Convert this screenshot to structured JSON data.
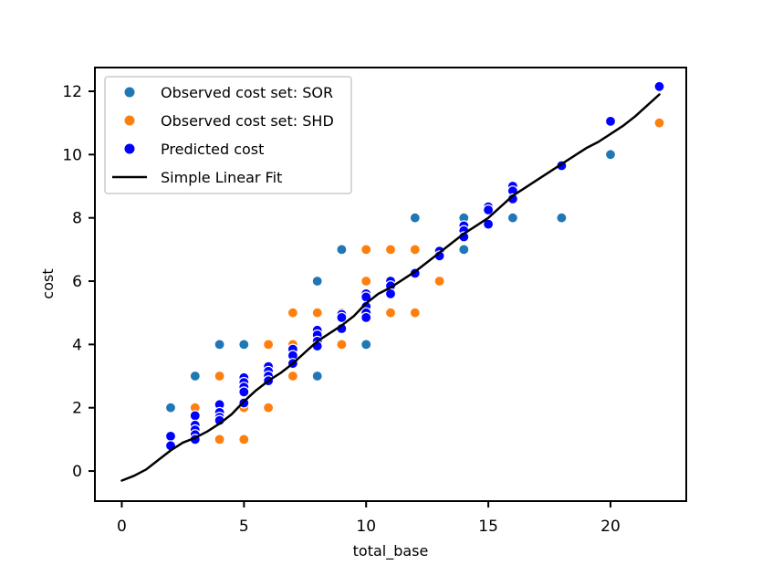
{
  "chart_data": {
    "type": "scatter",
    "xlabel": "total_base",
    "ylabel": "cost",
    "xlim": [
      -1.1,
      23.1
    ],
    "ylim": [
      -0.95,
      12.75
    ],
    "xticks": [
      0,
      5,
      10,
      15,
      20
    ],
    "yticks": [
      0,
      2,
      4,
      6,
      8,
      10,
      12
    ],
    "legend_position": "upper-left",
    "colors": {
      "sor": "#1f77b4",
      "shd": "#ff7f0e",
      "predicted": "#0000ff",
      "fit": "#000000"
    },
    "series": [
      {
        "name": "Observed cost set: SOR",
        "kind": "points",
        "points": [
          [
            2,
            2
          ],
          [
            3,
            3
          ],
          [
            4,
            4
          ],
          [
            5,
            4
          ],
          [
            8,
            6
          ],
          [
            8,
            3
          ],
          [
            9,
            7
          ],
          [
            10,
            4
          ],
          [
            12,
            8
          ],
          [
            14,
            8
          ],
          [
            14,
            7
          ],
          [
            16,
            8
          ],
          [
            18,
            8
          ],
          [
            20,
            10
          ]
        ]
      },
      {
        "name": "Observed cost set: SHD",
        "kind": "points",
        "points": [
          [
            3,
            2
          ],
          [
            3,
            1
          ],
          [
            4,
            3
          ],
          [
            4,
            1
          ],
          [
            5,
            2
          ],
          [
            5,
            1
          ],
          [
            6,
            4
          ],
          [
            6,
            2
          ],
          [
            7,
            5
          ],
          [
            7,
            4
          ],
          [
            7,
            3
          ],
          [
            8,
            5
          ],
          [
            9,
            5
          ],
          [
            9,
            4
          ],
          [
            10,
            7
          ],
          [
            10,
            6
          ],
          [
            11,
            7
          ],
          [
            11,
            5
          ],
          [
            12,
            7
          ],
          [
            12,
            5
          ],
          [
            13,
            6
          ],
          [
            22,
            11
          ]
        ]
      },
      {
        "name": "Predicted cost",
        "kind": "points",
        "points": [
          [
            2,
            1.1
          ],
          [
            2,
            0.8
          ],
          [
            3,
            1.75
          ],
          [
            3,
            1.45
          ],
          [
            3,
            1.3
          ],
          [
            3,
            1.15
          ],
          [
            3,
            1.0
          ],
          [
            4,
            2.1
          ],
          [
            4,
            1.85
          ],
          [
            4,
            1.7
          ],
          [
            4,
            1.6
          ],
          [
            5,
            2.95
          ],
          [
            5,
            2.8
          ],
          [
            5,
            2.65
          ],
          [
            5,
            2.5
          ],
          [
            5,
            2.15
          ],
          [
            6,
            3.3
          ],
          [
            6,
            3.15
          ],
          [
            6,
            3.0
          ],
          [
            6,
            2.85
          ],
          [
            7,
            3.85
          ],
          [
            7,
            3.65
          ],
          [
            7,
            3.4
          ],
          [
            8,
            4.45
          ],
          [
            8,
            4.3
          ],
          [
            8,
            4.1
          ],
          [
            8,
            3.95
          ],
          [
            9,
            4.95
          ],
          [
            9,
            4.85
          ],
          [
            9,
            4.5
          ],
          [
            10,
            5.6
          ],
          [
            10,
            5.5
          ],
          [
            10,
            5.2
          ],
          [
            10,
            5.0
          ],
          [
            10,
            4.85
          ],
          [
            11,
            6.0
          ],
          [
            11,
            5.85
          ],
          [
            11,
            5.6
          ],
          [
            12,
            6.25
          ],
          [
            13,
            6.95
          ],
          [
            13,
            6.8
          ],
          [
            14,
            7.75
          ],
          [
            14,
            7.6
          ],
          [
            14,
            7.4
          ],
          [
            15,
            8.35
          ],
          [
            15,
            8.25
          ],
          [
            15,
            7.8
          ],
          [
            16,
            9.0
          ],
          [
            16,
            8.85
          ],
          [
            16,
            8.6
          ],
          [
            18,
            9.65
          ],
          [
            20,
            11.05
          ],
          [
            22,
            12.15
          ]
        ]
      },
      {
        "name": "Simple Linear Fit",
        "kind": "line",
        "points": [
          [
            0,
            -0.3
          ],
          [
            0.5,
            -0.15
          ],
          [
            1,
            0.05
          ],
          [
            1.5,
            0.35
          ],
          [
            2,
            0.65
          ],
          [
            2.5,
            0.9
          ],
          [
            3,
            1.05
          ],
          [
            3.5,
            1.25
          ],
          [
            4,
            1.5
          ],
          [
            4.5,
            1.8
          ],
          [
            5,
            2.2
          ],
          [
            5.5,
            2.55
          ],
          [
            6,
            2.85
          ],
          [
            6.5,
            3.1
          ],
          [
            7,
            3.4
          ],
          [
            7.5,
            3.75
          ],
          [
            8,
            4.1
          ],
          [
            8.5,
            4.35
          ],
          [
            9,
            4.6
          ],
          [
            9.5,
            4.9
          ],
          [
            10,
            5.3
          ],
          [
            10.5,
            5.6
          ],
          [
            11,
            5.8
          ],
          [
            11.5,
            6.05
          ],
          [
            12,
            6.3
          ],
          [
            12.5,
            6.6
          ],
          [
            13,
            6.9
          ],
          [
            13.5,
            7.2
          ],
          [
            14,
            7.5
          ],
          [
            14.5,
            7.75
          ],
          [
            15,
            8.0
          ],
          [
            15.5,
            8.35
          ],
          [
            16,
            8.7
          ],
          [
            16.5,
            8.95
          ],
          [
            17,
            9.2
          ],
          [
            17.5,
            9.45
          ],
          [
            18,
            9.7
          ],
          [
            18.5,
            9.95
          ],
          [
            19,
            10.2
          ],
          [
            19.5,
            10.4
          ],
          [
            20,
            10.65
          ],
          [
            20.5,
            10.9
          ],
          [
            21,
            11.2
          ],
          [
            21.5,
            11.55
          ],
          [
            22,
            11.9
          ]
        ]
      }
    ]
  }
}
